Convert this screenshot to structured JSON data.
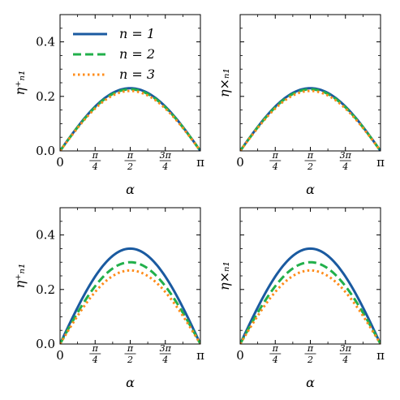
{
  "chart_data": [
    {
      "type": "line",
      "ylabel": "η⁺ₙ₁",
      "xlabel": "α",
      "xlim": [
        0,
        3.14159
      ],
      "ylim": [
        0,
        0.5
      ],
      "xticks": [
        "0",
        "π/4",
        "π/2",
        "3π/4",
        "π"
      ],
      "yticks": [
        "0.0",
        "0.2",
        "0.4"
      ],
      "legend": {
        "position": "upper-left",
        "entries": [
          "n = 1",
          "n = 2",
          "n = 3"
        ]
      },
      "x": [
        0,
        0.3927,
        0.7854,
        1.1781,
        1.5708,
        1.9635,
        2.3562,
        2.7489,
        3.1416
      ],
      "series": [
        {
          "name": "n = 1",
          "color": "#1a5aa0",
          "style": "solid",
          "values": [
            0,
            0.088,
            0.163,
            0.212,
            0.23,
            0.212,
            0.163,
            0.088,
            0
          ]
        },
        {
          "name": "n = 2",
          "color": "#22b04b",
          "style": "dashed",
          "values": [
            0,
            0.086,
            0.16,
            0.209,
            0.226,
            0.209,
            0.16,
            0.086,
            0
          ]
        },
        {
          "name": "n = 3",
          "color": "#ff8c1a",
          "style": "dotted",
          "values": [
            0,
            0.084,
            0.156,
            0.203,
            0.22,
            0.203,
            0.156,
            0.084,
            0
          ]
        }
      ]
    },
    {
      "type": "line",
      "ylabel": "η×ₙ₁",
      "xlabel": "α",
      "xlim": [
        0,
        3.14159
      ],
      "ylim": [
        0,
        0.5
      ],
      "xticks": [
        "0",
        "π/4",
        "π/2",
        "3π/4",
        "π"
      ],
      "yticks": [],
      "x": [
        0,
        0.3927,
        0.7854,
        1.1781,
        1.5708,
        1.9635,
        2.3562,
        2.7489,
        3.1416
      ],
      "series": [
        {
          "name": "n = 1",
          "color": "#1a5aa0",
          "style": "solid",
          "values": [
            0,
            0.088,
            0.163,
            0.212,
            0.23,
            0.212,
            0.163,
            0.088,
            0
          ]
        },
        {
          "name": "n = 2",
          "color": "#22b04b",
          "style": "dashed",
          "values": [
            0,
            0.086,
            0.16,
            0.209,
            0.226,
            0.209,
            0.16,
            0.086,
            0
          ]
        },
        {
          "name": "n = 3",
          "color": "#ff8c1a",
          "style": "dotted",
          "values": [
            0,
            0.084,
            0.156,
            0.203,
            0.22,
            0.203,
            0.156,
            0.084,
            0
          ]
        }
      ]
    },
    {
      "type": "line",
      "ylabel": "η⁺ₙ₁",
      "xlabel": "α",
      "xlim": [
        0,
        3.14159
      ],
      "ylim": [
        0,
        0.5
      ],
      "xticks": [
        "0",
        "π/4",
        "π/2",
        "3π/4",
        "π"
      ],
      "yticks": [
        "0.0",
        "0.2",
        "0.4"
      ],
      "x": [
        0,
        0.3927,
        0.7854,
        1.1781,
        1.5708,
        1.9635,
        2.3562,
        2.7489,
        3.1416
      ],
      "series": [
        {
          "name": "n = 1",
          "color": "#1a5aa0",
          "style": "solid",
          "values": [
            0,
            0.134,
            0.248,
            0.323,
            0.35,
            0.323,
            0.248,
            0.134,
            0
          ]
        },
        {
          "name": "n = 2",
          "color": "#22b04b",
          "style": "dashed",
          "values": [
            0,
            0.115,
            0.212,
            0.277,
            0.3,
            0.277,
            0.212,
            0.115,
            0
          ]
        },
        {
          "name": "n = 3",
          "color": "#ff8c1a",
          "style": "dotted",
          "values": [
            0,
            0.103,
            0.191,
            0.249,
            0.27,
            0.249,
            0.191,
            0.103,
            0
          ]
        }
      ]
    },
    {
      "type": "line",
      "ylabel": "η×ₙ₁",
      "xlabel": "α",
      "xlim": [
        0,
        3.14159
      ],
      "ylim": [
        0,
        0.5
      ],
      "xticks": [
        "0",
        "π/4",
        "π/2",
        "3π/4",
        "π"
      ],
      "yticks": [],
      "x": [
        0,
        0.3927,
        0.7854,
        1.1781,
        1.5708,
        1.9635,
        2.3562,
        2.7489,
        3.1416
      ],
      "series": [
        {
          "name": "n = 1",
          "color": "#1a5aa0",
          "style": "solid",
          "values": [
            0,
            0.134,
            0.248,
            0.323,
            0.35,
            0.323,
            0.248,
            0.134,
            0
          ]
        },
        {
          "name": "n = 2",
          "color": "#22b04b",
          "style": "dashed",
          "values": [
            0,
            0.115,
            0.212,
            0.277,
            0.3,
            0.277,
            0.212,
            0.115,
            0
          ]
        },
        {
          "name": "n = 3",
          "color": "#ff8c1a",
          "style": "dotted",
          "values": [
            0,
            0.103,
            0.191,
            0.249,
            0.27,
            0.249,
            0.191,
            0.103,
            0
          ]
        }
      ]
    }
  ]
}
